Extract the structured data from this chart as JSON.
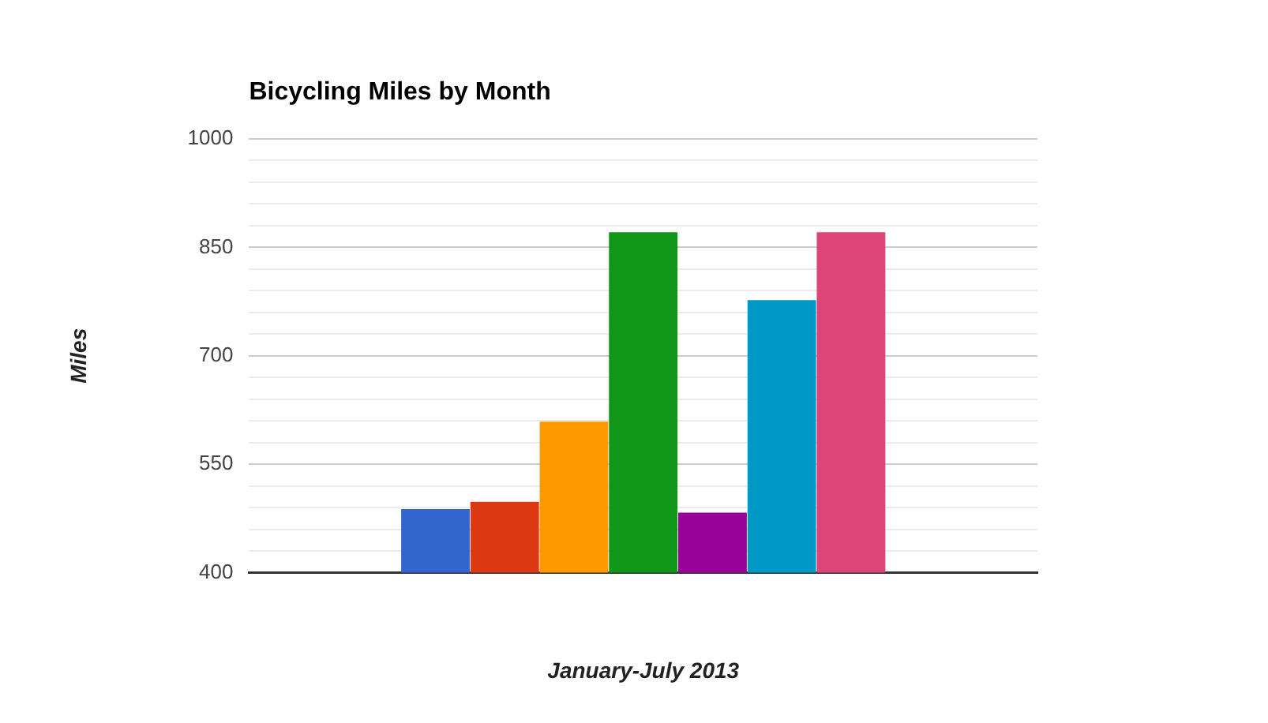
{
  "chart_data": {
    "type": "bar",
    "title": "Bicycling Miles by Month",
    "xlabel": "January-July 2013",
    "ylabel": "Miles",
    "categories": [
      null
    ],
    "series": [
      {
        "color": "#3366cc",
        "values": [
          488
        ]
      },
      {
        "color": "#dc3912",
        "values": [
          498
        ]
      },
      {
        "color": "#ff9900",
        "values": [
          609
        ]
      },
      {
        "color": "#109618",
        "values": [
          871
        ]
      },
      {
        "color": "#990099",
        "values": [
          483
        ]
      },
      {
        "color": "#0099c6",
        "values": [
          777
        ]
      },
      {
        "color": "#dd4477",
        "values": [
          871
        ]
      }
    ],
    "ylim": [
      400,
      1000
    ],
    "yticks": [
      400,
      {
        "value": 430,
        "label": null
      },
      {
        "value": 460,
        "label": null
      },
      {
        "value": 490,
        "label": null
      },
      {
        "value": 520,
        "label": null
      },
      550,
      {
        "value": 580,
        "label": null
      },
      {
        "value": 610,
        "label": null
      },
      {
        "value": 640,
        "label": null
      },
      {
        "value": 670,
        "label": null
      },
      700,
      {
        "value": 730,
        "label": null
      },
      {
        "value": 760,
        "label": null
      },
      {
        "value": 790,
        "label": null
      },
      {
        "value": 820,
        "label": null
      },
      850,
      {
        "value": 880,
        "label": null
      },
      {
        "value": 910,
        "label": null
      },
      {
        "value": 940,
        "label": null
      },
      {
        "value": 970,
        "label": null
      },
      1000
    ],
    "grid": "y",
    "legend": false
  }
}
